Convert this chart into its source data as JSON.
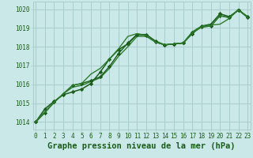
{
  "title": "Graphe pression niveau de la mer (hPa)",
  "bg_color": "#cbe8e8",
  "grid_color": "#a8cccc",
  "line_color_dark": "#1a5c1a",
  "line_color_mid": "#2e7d2e",
  "xlim": [
    -0.3,
    23.3
  ],
  "ylim": [
    1013.6,
    1020.4
  ],
  "yticks": [
    1014,
    1015,
    1016,
    1017,
    1018,
    1019,
    1020
  ],
  "xticks": [
    0,
    1,
    2,
    3,
    4,
    5,
    6,
    7,
    8,
    9,
    10,
    11,
    12,
    13,
    14,
    15,
    16,
    17,
    18,
    19,
    20,
    21,
    22,
    23
  ],
  "series": [
    [
      1014.0,
      1014.7,
      1015.1,
      1015.45,
      1015.6,
      1015.75,
      1016.05,
      1016.65,
      1017.35,
      1017.85,
      1018.15,
      1018.65,
      1018.65,
      1018.3,
      1018.1,
      1018.15,
      1018.2,
      1018.7,
      1019.1,
      1019.2,
      1019.75,
      1019.6,
      1019.95,
      1019.6
    ],
    [
      1014.0,
      1014.55,
      1015.05,
      1015.5,
      1015.85,
      1015.95,
      1016.15,
      1016.35,
      1016.85,
      1017.5,
      1018.0,
      1018.55,
      1018.55,
      1018.25,
      1018.1,
      1018.15,
      1018.2,
      1018.8,
      1019.1,
      1019.15,
      1019.2,
      1019.5,
      1020.0,
      1019.55
    ],
    [
      1014.0,
      1014.5,
      1015.05,
      1015.5,
      1015.95,
      1016.05,
      1016.2,
      1016.4,
      1016.95,
      1017.65,
      1018.2,
      1018.65,
      1018.6,
      1018.25,
      1018.1,
      1018.15,
      1018.2,
      1018.75,
      1019.05,
      1019.1,
      1019.65,
      1019.55,
      1019.95,
      1019.55
    ],
    [
      1014.0,
      1014.5,
      1015.05,
      1015.5,
      1015.95,
      1016.05,
      1016.55,
      1016.85,
      1017.35,
      1017.9,
      1018.55,
      1018.7,
      1018.6,
      1018.25,
      1018.1,
      1018.15,
      1018.2,
      1018.75,
      1019.05,
      1019.1,
      1019.65,
      1019.55,
      1019.95,
      1019.55
    ]
  ],
  "series_styles": [
    {
      "color": "#1a5c1a",
      "lw": 1.1,
      "marker": "D",
      "ms": 2.2
    },
    {
      "color": "#2e7d2e",
      "lw": 1.0,
      "marker": null,
      "ms": 0
    },
    {
      "color": "#1a5c1a",
      "lw": 1.0,
      "marker": "D",
      "ms": 2.2
    },
    {
      "color": "#2e7d2e",
      "lw": 1.0,
      "marker": null,
      "ms": 0
    }
  ],
  "tick_fontsize": 5.5,
  "xlabel_fontsize": 7.5,
  "font_family": "monospace"
}
